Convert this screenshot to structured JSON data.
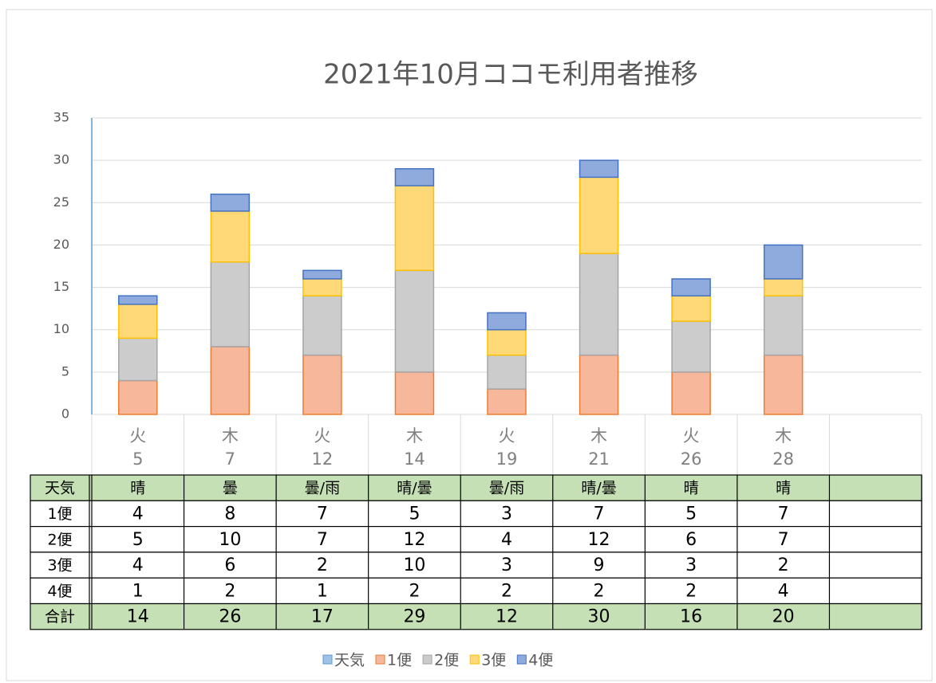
{
  "chart_data": {
    "type": "bar",
    "stacked": true,
    "title": "2021年10月ココモ利用者推移",
    "weekdays": [
      "火",
      "木",
      "火",
      "木",
      "火",
      "木",
      "火",
      "木",
      null
    ],
    "categories": [
      "5",
      "7",
      "12",
      "14",
      "19",
      "21",
      "26",
      "28",
      null
    ],
    "series": [
      {
        "name": "天気",
        "color": "#9dc3e6",
        "edgecolor": "#5b9bd5",
        "values": [
          "晴",
          "曇",
          "曇/雨",
          "晴/曇",
          "曇/雨",
          "晴/曇",
          "晴",
          "晴",
          null
        ]
      },
      {
        "name": "1便",
        "color": "#f7b79a",
        "edgecolor": "#ed7d31",
        "values": [
          4,
          8,
          7,
          5,
          3,
          7,
          5,
          7,
          null
        ]
      },
      {
        "name": "2便",
        "color": "#cccccc",
        "edgecolor": "#a5a5a5",
        "values": [
          5,
          10,
          7,
          12,
          4,
          12,
          6,
          7,
          null
        ]
      },
      {
        "name": "3便",
        "color": "#ffd978",
        "edgecolor": "#ffc000",
        "values": [
          4,
          6,
          2,
          10,
          3,
          9,
          3,
          2,
          null
        ]
      },
      {
        "name": "4便",
        "color": "#8faadc",
        "edgecolor": "#4472c4",
        "values": [
          1,
          2,
          1,
          2,
          2,
          2,
          2,
          4,
          null
        ]
      }
    ],
    "total_label": "合計",
    "totals": [
      14,
      26,
      17,
      29,
      12,
      30,
      16,
      20,
      null
    ],
    "ylim": [
      0,
      35
    ],
    "yticks": [
      0,
      5,
      10,
      15,
      20,
      25,
      30,
      35
    ],
    "grid": true
  }
}
